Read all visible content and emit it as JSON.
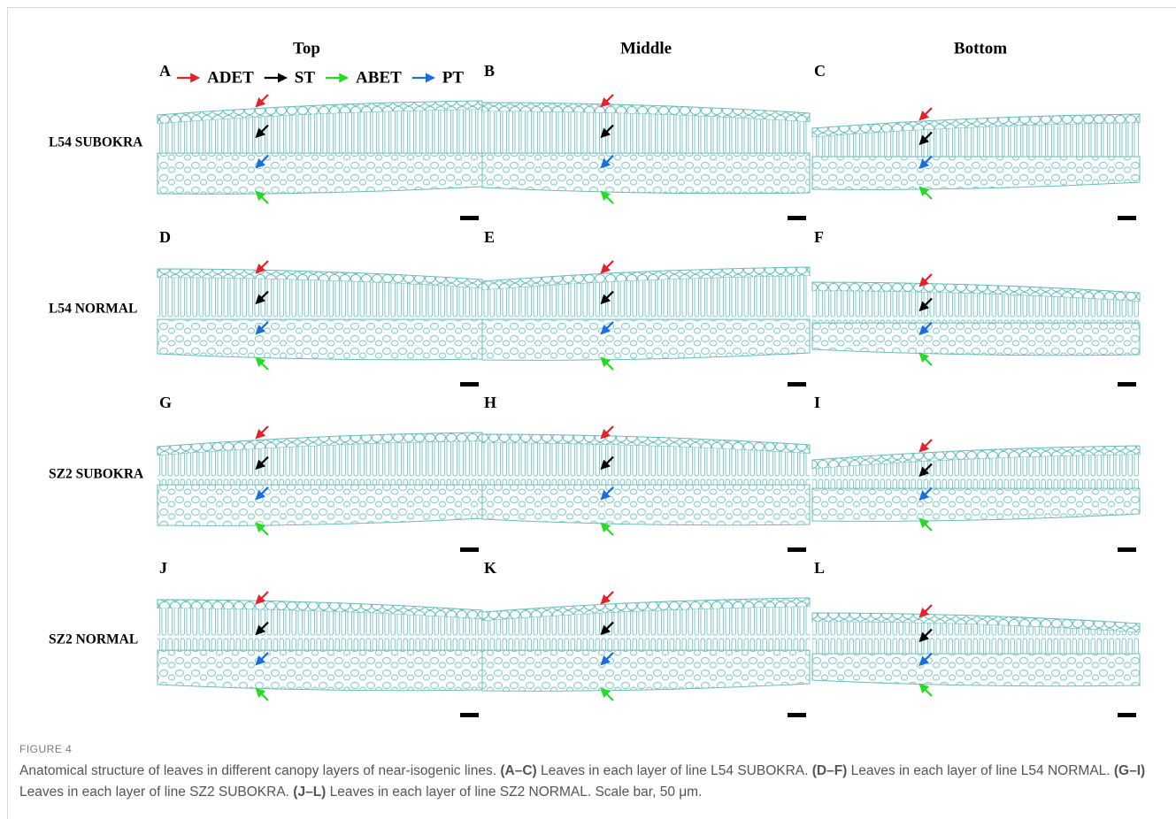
{
  "figure": {
    "columns": [
      "Top",
      "Middle",
      "Bottom"
    ],
    "rows": [
      "L54 SUBOKRA",
      "L54 NORMAL",
      "SZ2 SUBOKRA",
      "SZ2 NORMAL"
    ],
    "panels": [
      "A",
      "B",
      "C",
      "D",
      "E",
      "F",
      "G",
      "H",
      "I",
      "J",
      "K",
      "L"
    ],
    "legend": [
      {
        "label": "ADET",
        "color": "#e8202a"
      },
      {
        "label": "ST",
        "color": "#000000"
      },
      {
        "label": "ABET",
        "color": "#22dd22"
      },
      {
        "label": "PT",
        "color": "#1a6fe0"
      }
    ],
    "label": "FIGURE 4",
    "caption": [
      {
        "text": "Anatomical structure of leaves in different canopy layers of near-isogenic lines. ",
        "bold": false
      },
      {
        "text": "(A–C)",
        "bold": true
      },
      {
        "text": " Leaves in each layer of line L54 SUBOKRA. ",
        "bold": false
      },
      {
        "text": "(D–F)",
        "bold": true
      },
      {
        "text": " Leaves in each layer of line L54 NORMAL. ",
        "bold": false
      },
      {
        "text": "(G–I)",
        "bold": true
      },
      {
        "text": " Leaves in each layer of line SZ2 SUBOKRA. ",
        "bold": false
      },
      {
        "text": "(J–L)",
        "bold": true
      },
      {
        "text": " Leaves in each layer of line SZ2 NORMAL. Scale bar, 50 μm.",
        "bold": false
      }
    ]
  }
}
